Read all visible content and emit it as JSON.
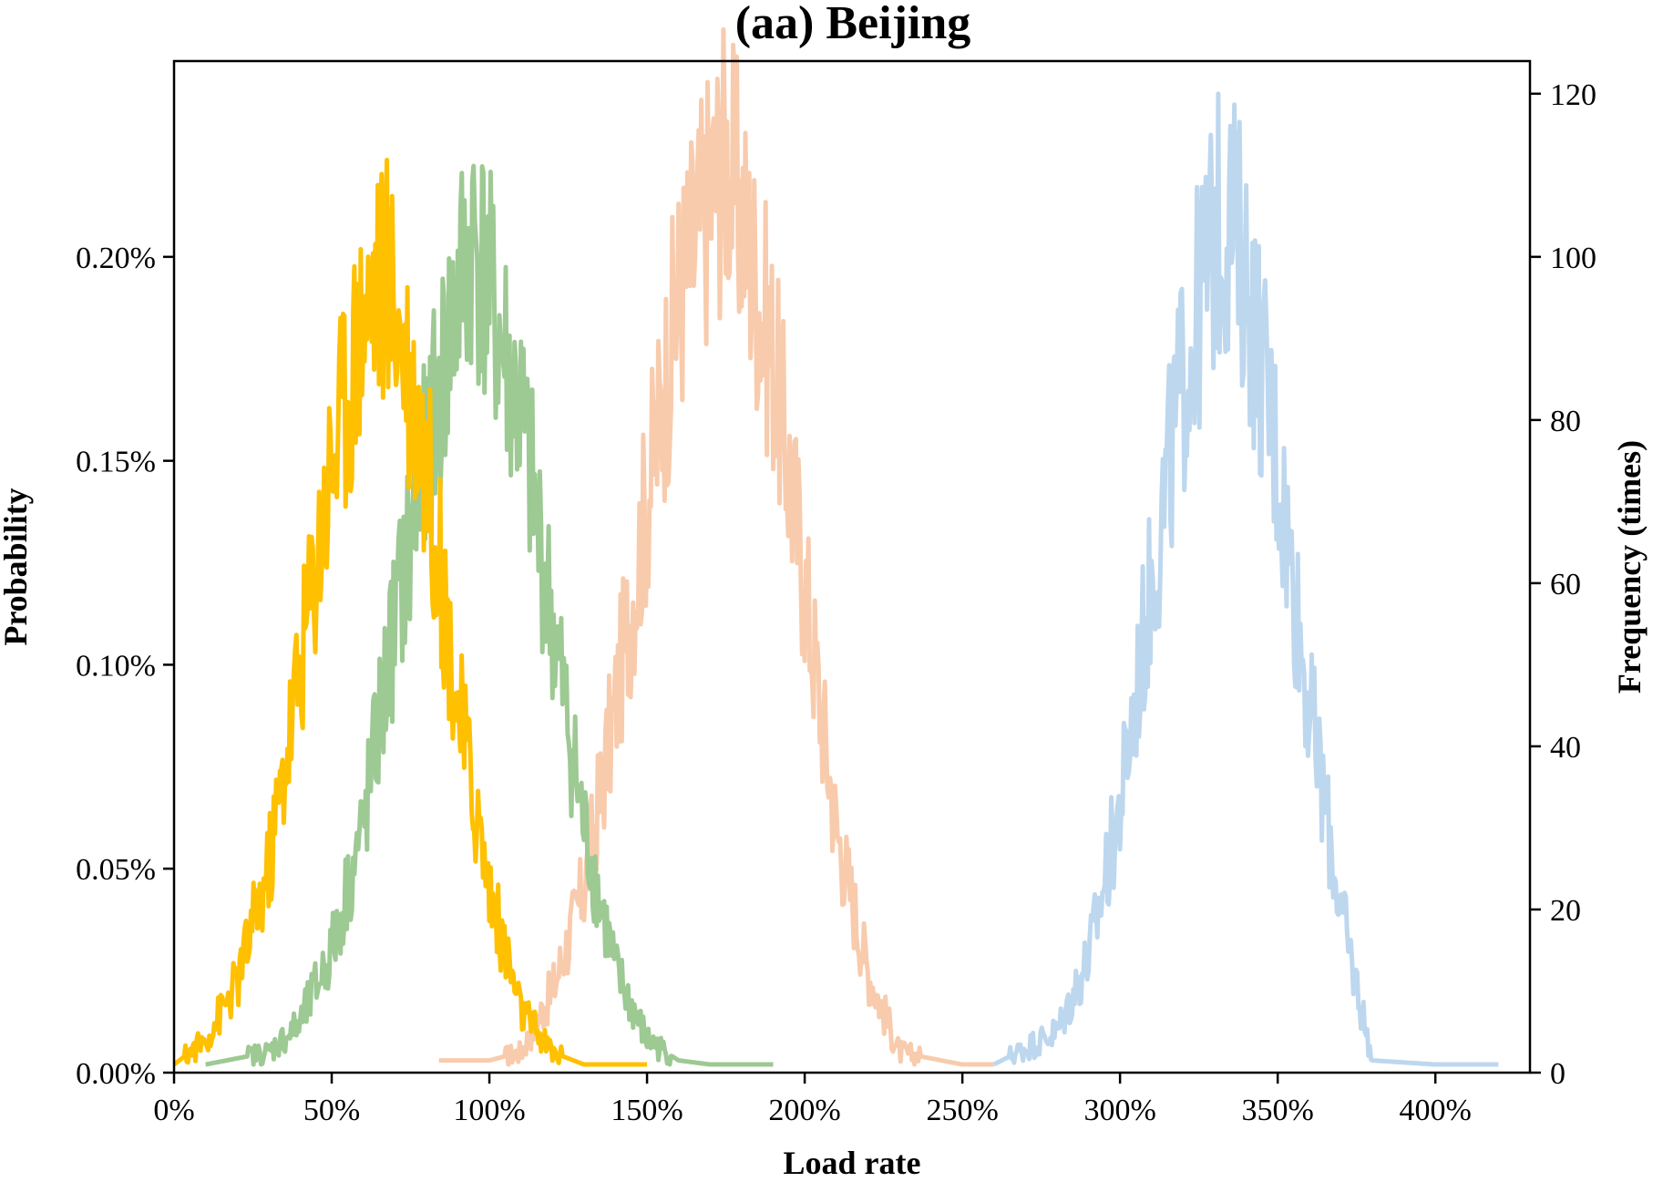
{
  "chart_data": {
    "type": "line",
    "title": "(aa) Beijing",
    "xlabel": "Load rate",
    "ylabel_left": "Probability",
    "ylabel_right": "Frequency (times)",
    "xlim": [
      0,
      4.3
    ],
    "ylim_left": [
      0,
      0.00248
    ],
    "ylim_right": [
      0,
      124
    ],
    "x_ticks": [
      0,
      0.5,
      1.0,
      1.5,
      2.0,
      2.5,
      3.0,
      3.5,
      4.0
    ],
    "x_tick_labels": [
      "0%",
      "50%",
      "100%",
      "150%",
      "200%",
      "250%",
      "300%",
      "350%",
      "400%"
    ],
    "y_left_ticks": [
      0,
      0.0005,
      0.001,
      0.0015,
      0.002
    ],
    "y_left_tick_labels": [
      "0.00%",
      "0.05%",
      "0.10%",
      "0.15%",
      "0.20%"
    ],
    "y_right_ticks": [
      0,
      20,
      40,
      60,
      80,
      100,
      120
    ],
    "y_right_tick_labels": [
      "0",
      "20",
      "40",
      "60",
      "80",
      "100",
      "120"
    ],
    "grid": false,
    "legend": "none",
    "series": [
      {
        "color": "#F8CBAD",
        "x": [
          0.84,
          1.0,
          1.1,
          1.2,
          1.3,
          1.4,
          1.5,
          1.6,
          1.7,
          1.75,
          1.8,
          1.9,
          2.0,
          2.1,
          2.2,
          2.3,
          2.5,
          2.6
        ],
        "y": [
          3e-05,
          3e-05,
          5e-05,
          0.0002,
          0.00045,
          0.0009,
          0.0014,
          0.0019,
          0.00215,
          0.00225,
          0.0021,
          0.00175,
          0.0012,
          0.0006,
          0.00025,
          5e-05,
          2e-05,
          2e-05
        ]
      },
      {
        "color": "#BDD7EE",
        "x": [
          2.6,
          2.8,
          2.9,
          3.0,
          3.1,
          3.2,
          3.3,
          3.35,
          3.4,
          3.5,
          3.6,
          3.7,
          3.8,
          4.0,
          4.2
        ],
        "y": [
          2e-05,
          0.0001,
          0.00028,
          0.00065,
          0.0012,
          0.0017,
          0.00205,
          0.0021,
          0.00195,
          0.0015,
          0.0009,
          0.0004,
          3e-05,
          2e-05,
          2e-05
        ]
      },
      {
        "color": "#9DC993",
        "x": [
          0.1,
          0.3,
          0.4,
          0.5,
          0.6,
          0.7,
          0.8,
          0.9,
          0.95,
          1.0,
          1.1,
          1.2,
          1.3,
          1.4,
          1.5,
          1.6,
          1.7,
          1.9
        ],
        "y": [
          2e-05,
          5e-05,
          0.00012,
          0.0003,
          0.0006,
          0.0011,
          0.0015,
          0.0019,
          0.00205,
          0.0019,
          0.0016,
          0.0011,
          0.0006,
          0.00025,
          8e-05,
          3e-05,
          2e-05,
          2e-05
        ]
      },
      {
        "color": "#FFC000",
        "x": [
          0.0,
          0.1,
          0.2,
          0.3,
          0.4,
          0.5,
          0.6,
          0.65,
          0.7,
          0.8,
          0.9,
          1.0,
          1.1,
          1.2,
          1.3,
          1.4,
          1.5
        ],
        "y": [
          2e-05,
          8e-05,
          0.00022,
          0.0005,
          0.001,
          0.0015,
          0.00185,
          0.00195,
          0.0019,
          0.0015,
          0.0009,
          0.00045,
          0.00015,
          5e-05,
          2e-05,
          2e-05,
          2e-05
        ]
      }
    ]
  }
}
